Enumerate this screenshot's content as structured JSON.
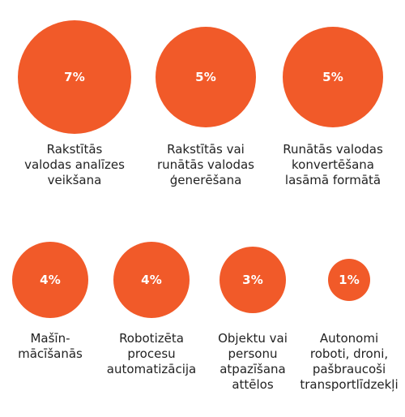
{
  "chart_data": {
    "type": "bubble",
    "colors": {
      "bubble": "#f15a29",
      "value_text": "#ffffff",
      "label_text": "#222222"
    },
    "items": [
      {
        "label": "Rakstītās\nvalodas analīzes\nveikšana",
        "value": 7,
        "value_label": "7%"
      },
      {
        "label": "Rakstītās vai\nrunātās valodas\nģenerēšana",
        "value": 5,
        "value_label": "5%"
      },
      {
        "label": "Runātās valodas\nkonvertēšana\nlasāmā formātā",
        "value": 5,
        "value_label": "5%"
      },
      {
        "label": "Mašīn-\nmācīšanās",
        "value": 4,
        "value_label": "4%"
      },
      {
        "label": "Robotizēta\nprocesu\nautomatizācija",
        "value": 4,
        "value_label": "4%"
      },
      {
        "label": "Objektu vai\npersonu\natpazīšana\nattēlos",
        "value": 3,
        "value_label": "3%"
      },
      {
        "label": "Autonomi\nroboti, droni,\npašbraucoši\ntransportlīdzekļi",
        "value": 1,
        "value_label": "1%"
      }
    ]
  }
}
